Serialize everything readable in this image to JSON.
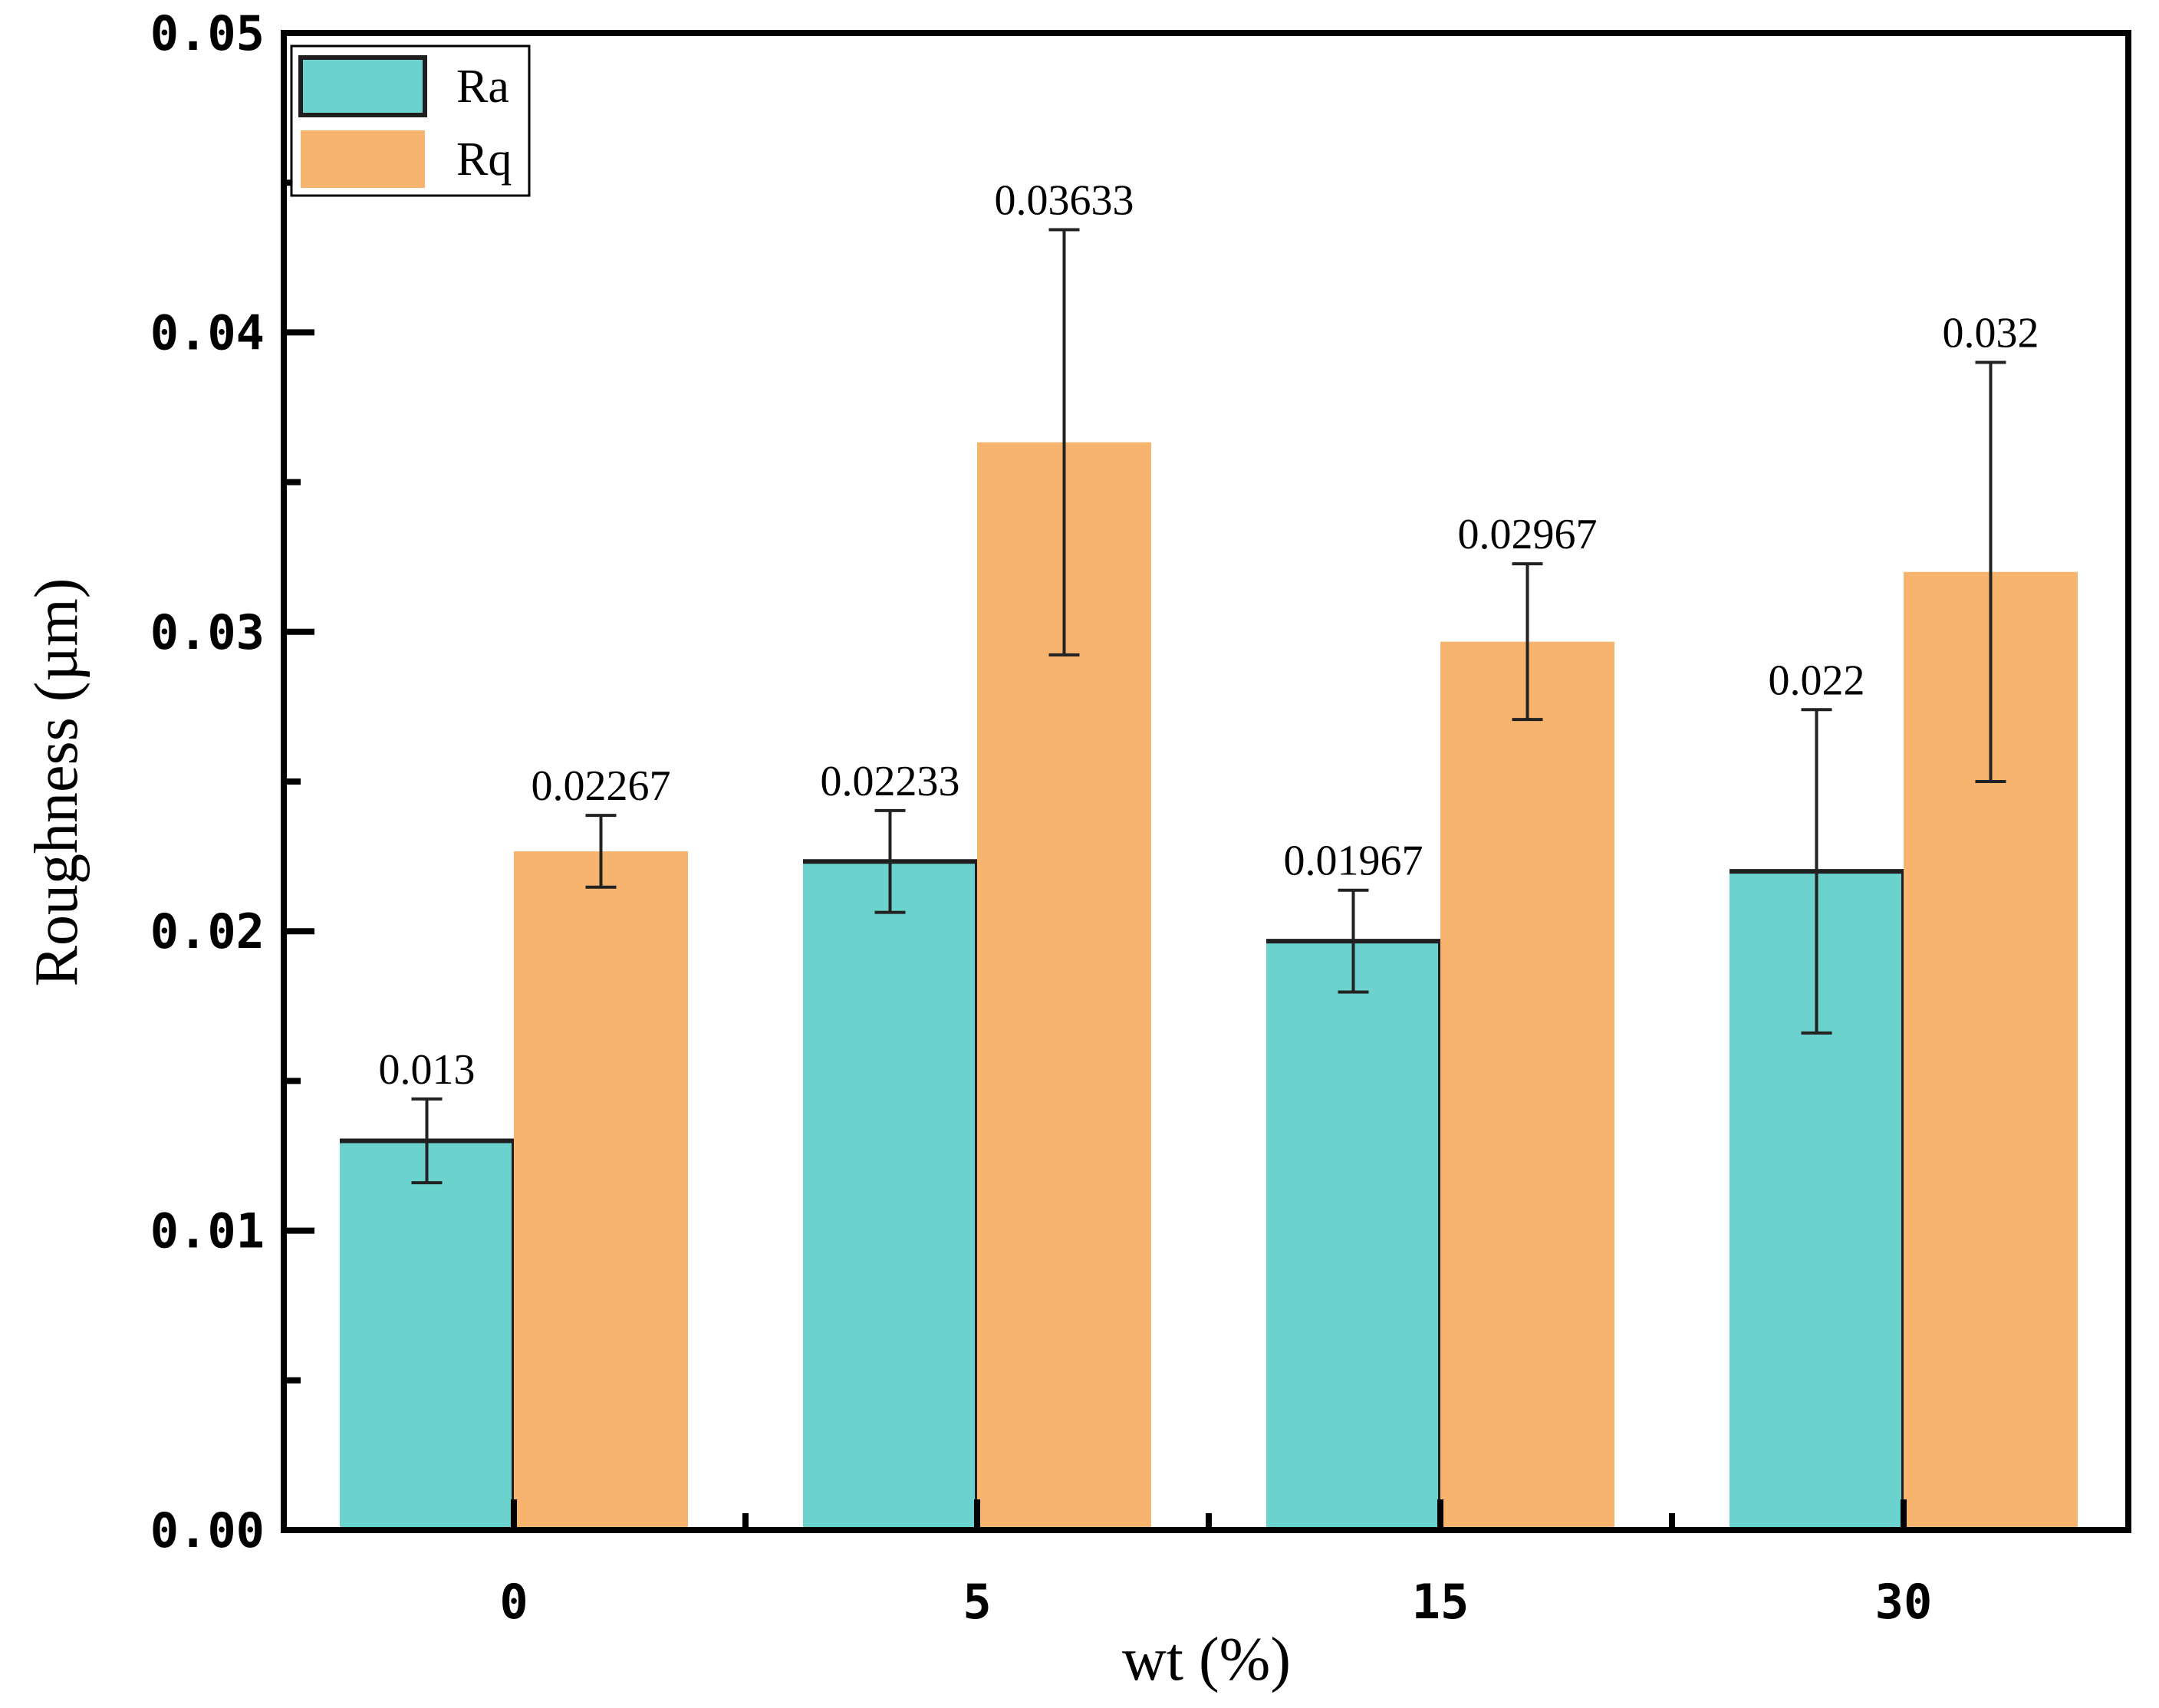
{
  "chart_data": {
    "type": "bar",
    "title": "",
    "xlabel": "wt (%)",
    "ylabel": "Roughness (µm)",
    "categories": [
      "0",
      "5",
      "15",
      "30"
    ],
    "ylim": [
      0,
      0.05
    ],
    "yticks": [
      0.0,
      0.01,
      0.02,
      0.03,
      0.04,
      0.05
    ],
    "ytick_labels": [
      "0.00",
      "0.01",
      "0.02",
      "0.03",
      "0.04",
      "0.05"
    ],
    "legend_position": "top-left",
    "grid": false,
    "series": [
      {
        "name": "Ra",
        "color": "#6BD2CD",
        "values": [
          0.013,
          0.02233,
          0.01967,
          0.022
        ],
        "errors": [
          0.0014,
          0.0017,
          0.0017,
          0.0054
        ],
        "labels": [
          "0.013",
          "0.02233",
          "0.01967",
          "0.022"
        ]
      },
      {
        "name": "Rq",
        "color": "#F7B46F",
        "values": [
          0.02267,
          0.03633,
          0.02967,
          0.032
        ],
        "errors": [
          0.0012,
          0.0071,
          0.0026,
          0.007
        ],
        "labels": [
          "0.02267",
          "0.03633",
          "0.02967",
          "0.032"
        ]
      }
    ]
  }
}
